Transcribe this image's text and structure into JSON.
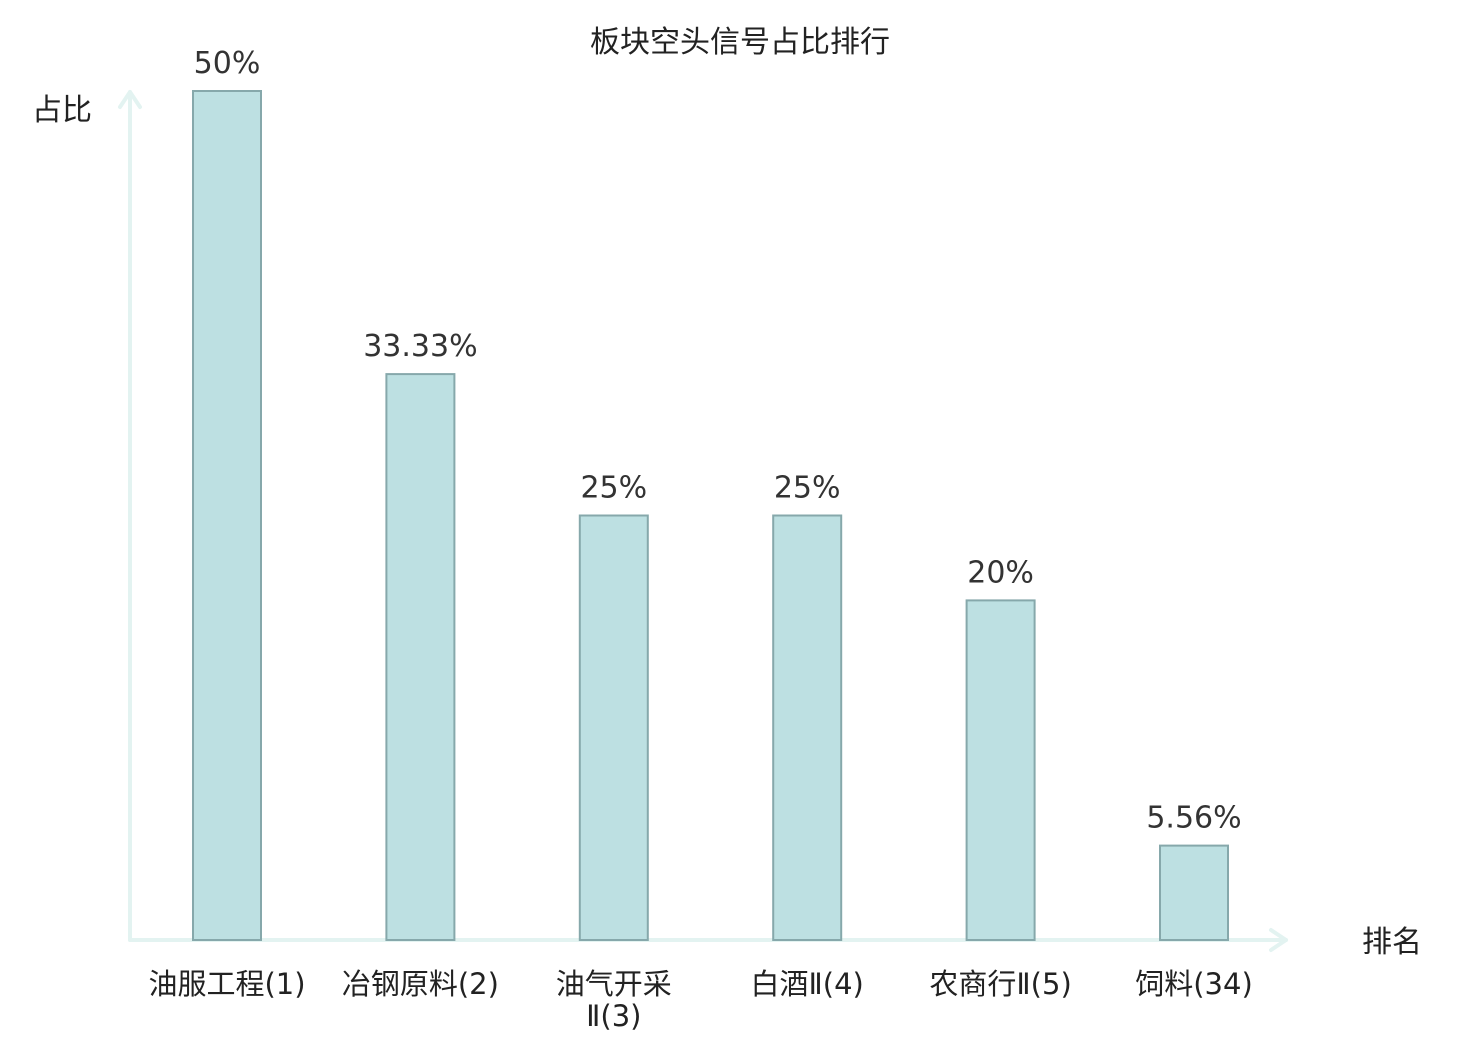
{
  "chart_data": {
    "type": "bar",
    "title": "板块空头信号占比排行",
    "xlabel": "排名",
    "ylabel": "占比",
    "ylim": [
      0,
      50
    ],
    "grid": false,
    "categories": [
      [
        "油服工程(1)"
      ],
      [
        "冶钢原料(2)"
      ],
      [
        "油气开采",
        "Ⅱ(3)"
      ],
      [
        "白酒Ⅱ(4)"
      ],
      [
        "农商行Ⅱ(5)"
      ],
      [
        "饲料(34)"
      ]
    ],
    "values": [
      50,
      33.33,
      25,
      25,
      20,
      5.56
    ],
    "value_labels": [
      "50%",
      "33.33%",
      "25%",
      "25%",
      "20%",
      "5.56%"
    ],
    "highlight_index": 5
  },
  "colors": {
    "bar_fill": "#bde0e2",
    "bar_stroke": "#86a8ab",
    "axis": "#e3f3f1",
    "highlight_text": "#e0201c",
    "text": "#222222"
  }
}
